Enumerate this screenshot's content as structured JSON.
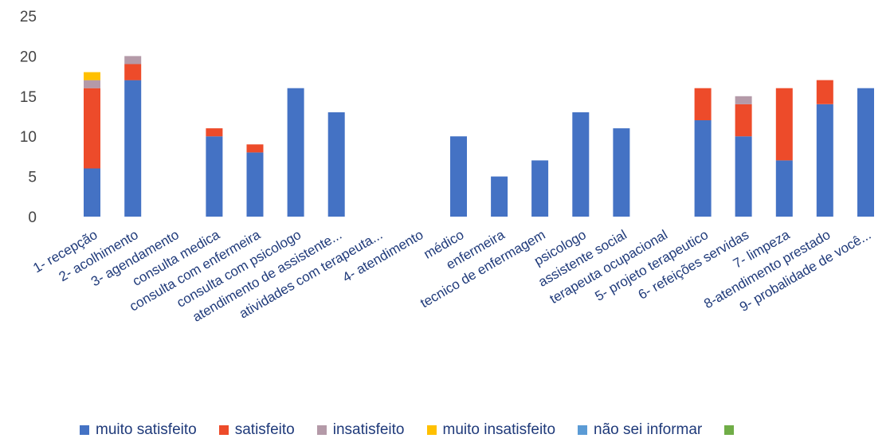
{
  "chart_data": {
    "type": "bar",
    "stacked": true,
    "ylim": [
      0,
      25
    ],
    "yticks": [
      0,
      5,
      10,
      15,
      20,
      25
    ],
    "grid": false,
    "legend_position": "bottom",
    "categories": [
      "1- recepção",
      "2- acolhimento",
      "3- agendamento",
      "consulta medica",
      "consulta com enfermeira",
      "consulta com psicologo",
      "atendimento de assistente...",
      "atividades com terapeuta...",
      "4- atendimento",
      "médico",
      "enfermeira",
      "tecnico de enfermagem",
      "psicologo",
      "assistente social",
      "terapeuta ocupacional",
      "5- projeto terapeutico",
      "6- refeições servidas",
      "7- limpeza",
      "8-atendimento prestado",
      "9- probalidade de você..."
    ],
    "series": [
      {
        "name": "muito satisfeito",
        "color": "#4472c4",
        "values": [
          6,
          17,
          0,
          10,
          8,
          16,
          13,
          0,
          0,
          10,
          5,
          7,
          13,
          11,
          0,
          12,
          10,
          7,
          14,
          16
        ]
      },
      {
        "name": "satisfeito",
        "color": "#ed4b2a",
        "values": [
          10,
          2,
          0,
          1,
          1,
          0,
          0,
          0,
          0,
          0,
          0,
          0,
          0,
          0,
          0,
          4,
          4,
          9,
          3,
          0
        ]
      },
      {
        "name": "insatisfeito",
        "color": "#b49aa8",
        "values": [
          1,
          1,
          0,
          0,
          0,
          0,
          0,
          0,
          0,
          0,
          0,
          0,
          0,
          0,
          0,
          0,
          1,
          0,
          0,
          0
        ]
      },
      {
        "name": "muito insatisfeito",
        "color": "#ffc000",
        "values": [
          1,
          0,
          0,
          0,
          0,
          0,
          0,
          0,
          0,
          0,
          0,
          0,
          0,
          0,
          0,
          0,
          0,
          0,
          0,
          0
        ]
      },
      {
        "name": "não sei informar",
        "color": "#5b9bd5",
        "values": [
          0,
          0,
          0,
          0,
          0,
          0,
          0,
          0,
          0,
          0,
          0,
          0,
          0,
          0,
          0,
          0,
          0,
          0,
          0,
          0
        ]
      },
      {
        "name": "",
        "color": "#70ad47",
        "values": [
          0,
          0,
          0,
          0,
          0,
          0,
          0,
          0,
          0,
          0,
          0,
          0,
          0,
          0,
          0,
          0,
          0,
          0,
          0,
          0
        ]
      }
    ]
  }
}
